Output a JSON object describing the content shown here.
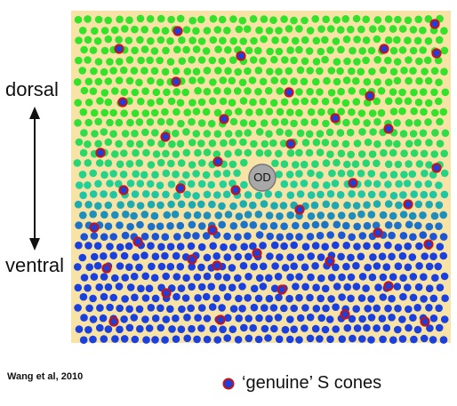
{
  "axis": {
    "dorsal_label": "dorsal",
    "ventral_label": "ventral"
  },
  "optic_disc_label": "OD",
  "citation": "Wang et al, 2010",
  "legend": {
    "text": "‘genuine’ S cones",
    "marker_fill": "#1a3fe0",
    "marker_ring": "#cc1111"
  },
  "colors": {
    "background": "#f7e3a6",
    "dorsal_cone": "#33e22a",
    "mid_cone": "#1fcfa0",
    "ventral_cone": "#1a3fe0",
    "optic_disc": "#a8a8a8"
  }
}
